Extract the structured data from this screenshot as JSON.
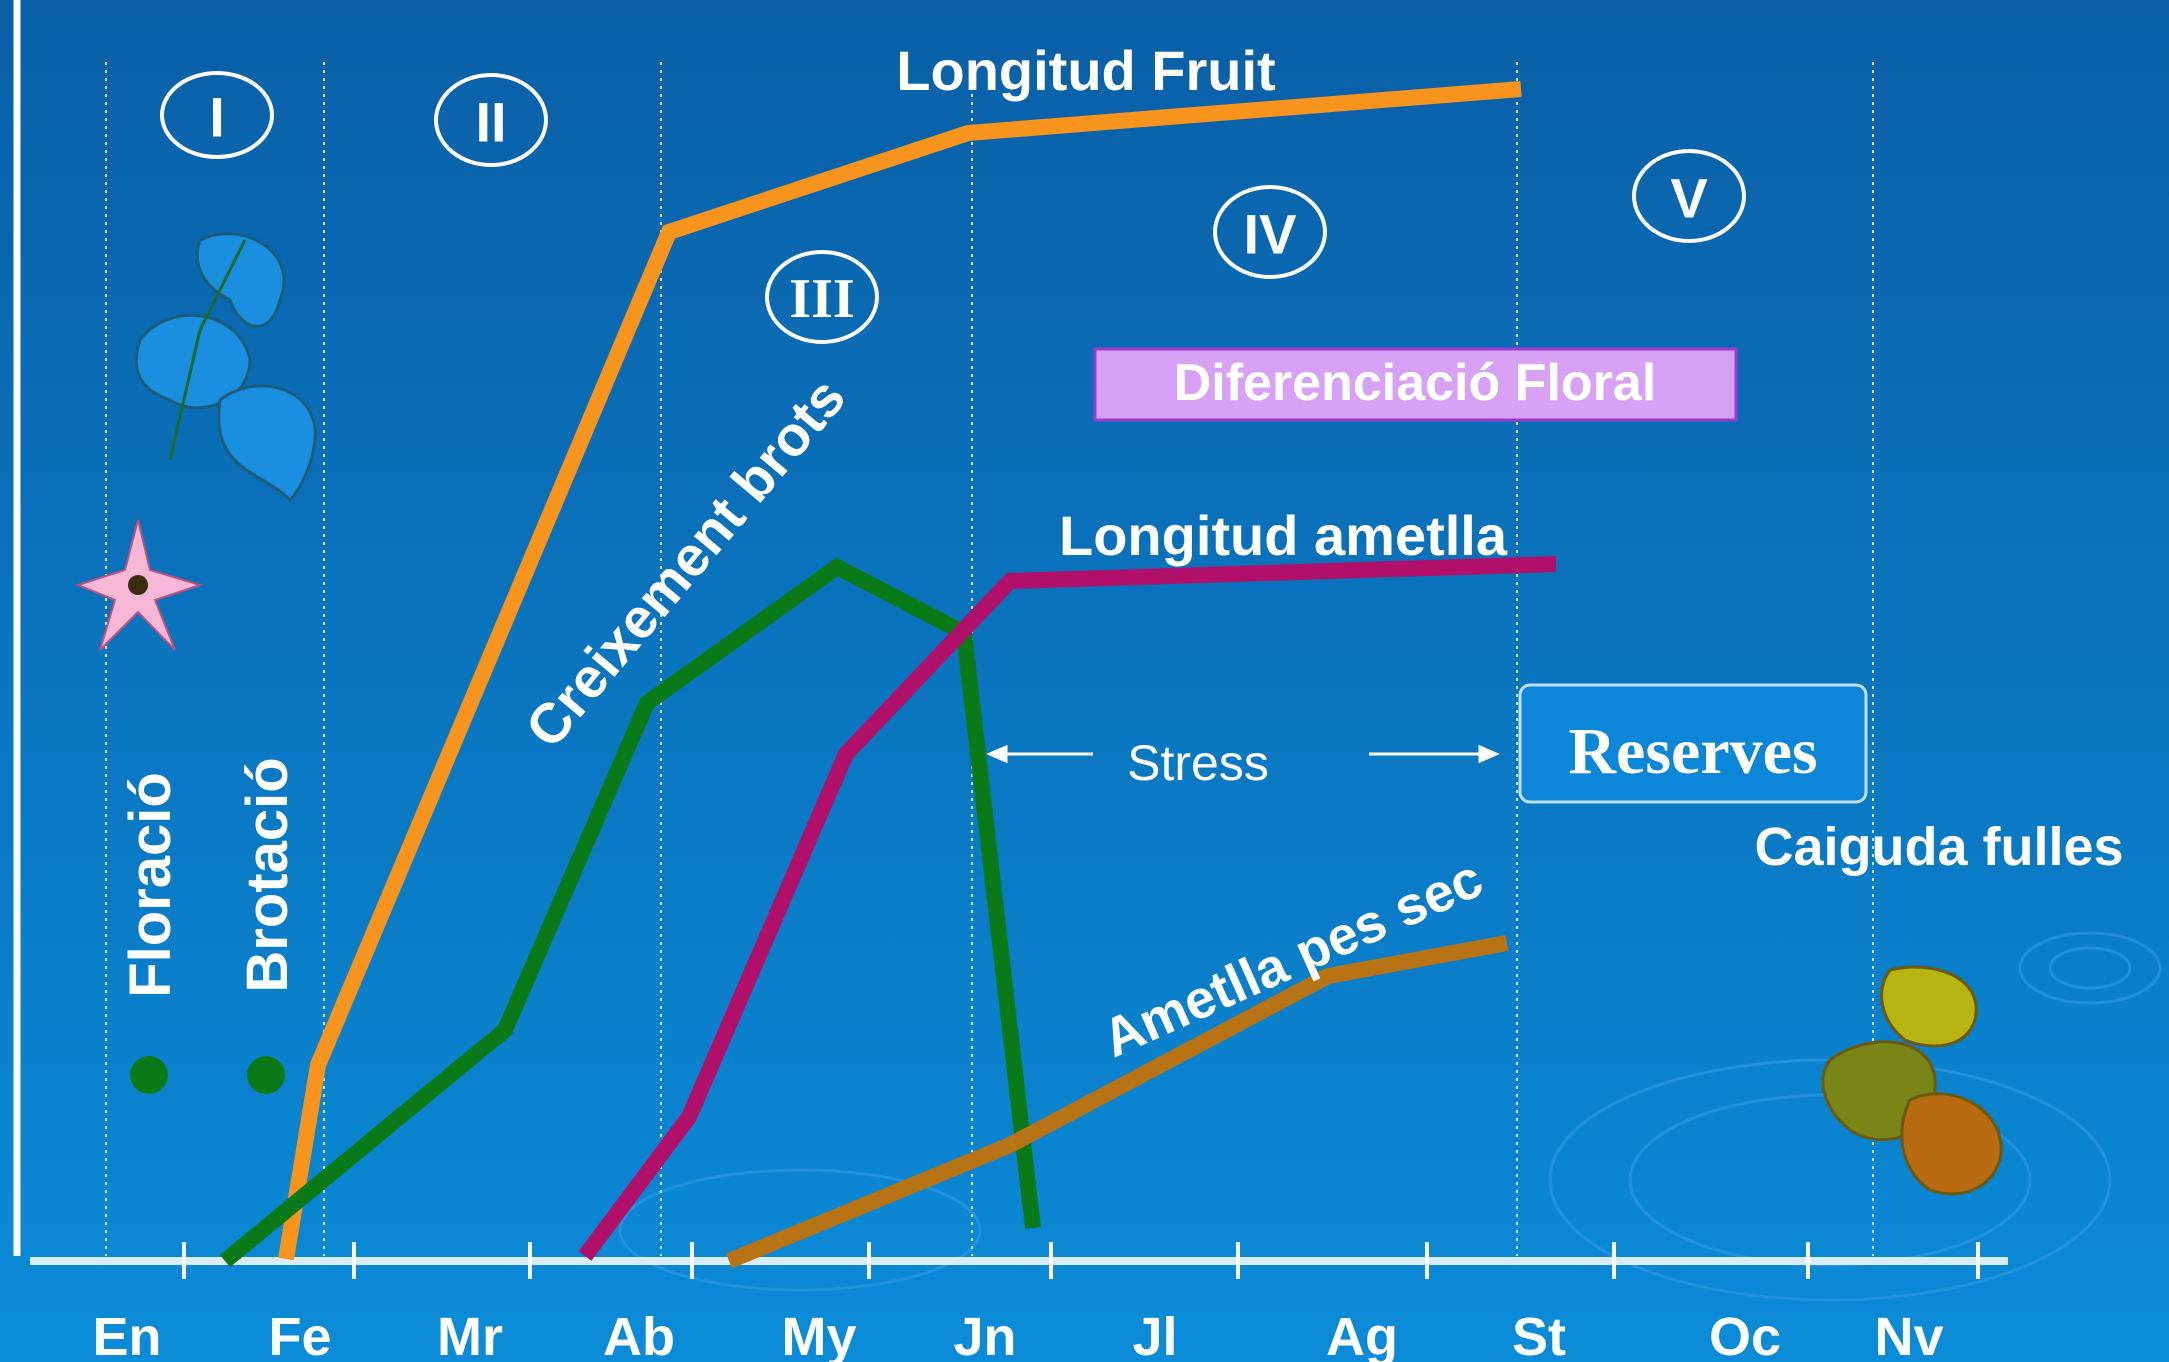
{
  "months": [
    "En",
    "Fe",
    "Mr",
    "Ab",
    "My",
    "Jn",
    "Jl",
    "Ag",
    "St",
    "Oc",
    "Nv"
  ],
  "phases": [
    "I",
    "II",
    "III",
    "IV",
    "V"
  ],
  "events": {
    "flowering": "Floració",
    "budding": "Brotació"
  },
  "curves": {
    "fruit_length": "Longitud Fruit",
    "shoot_growth": "Creixement brots",
    "almond_length": "Longitud ametlla",
    "almond_dry_weight": "Ametlla pes sec"
  },
  "annotations": {
    "floral_differentiation": "Diferenciació Floral",
    "stress": "Stress",
    "reserves": "Reserves",
    "leaf_fall": "Caiguda fulles"
  }
}
